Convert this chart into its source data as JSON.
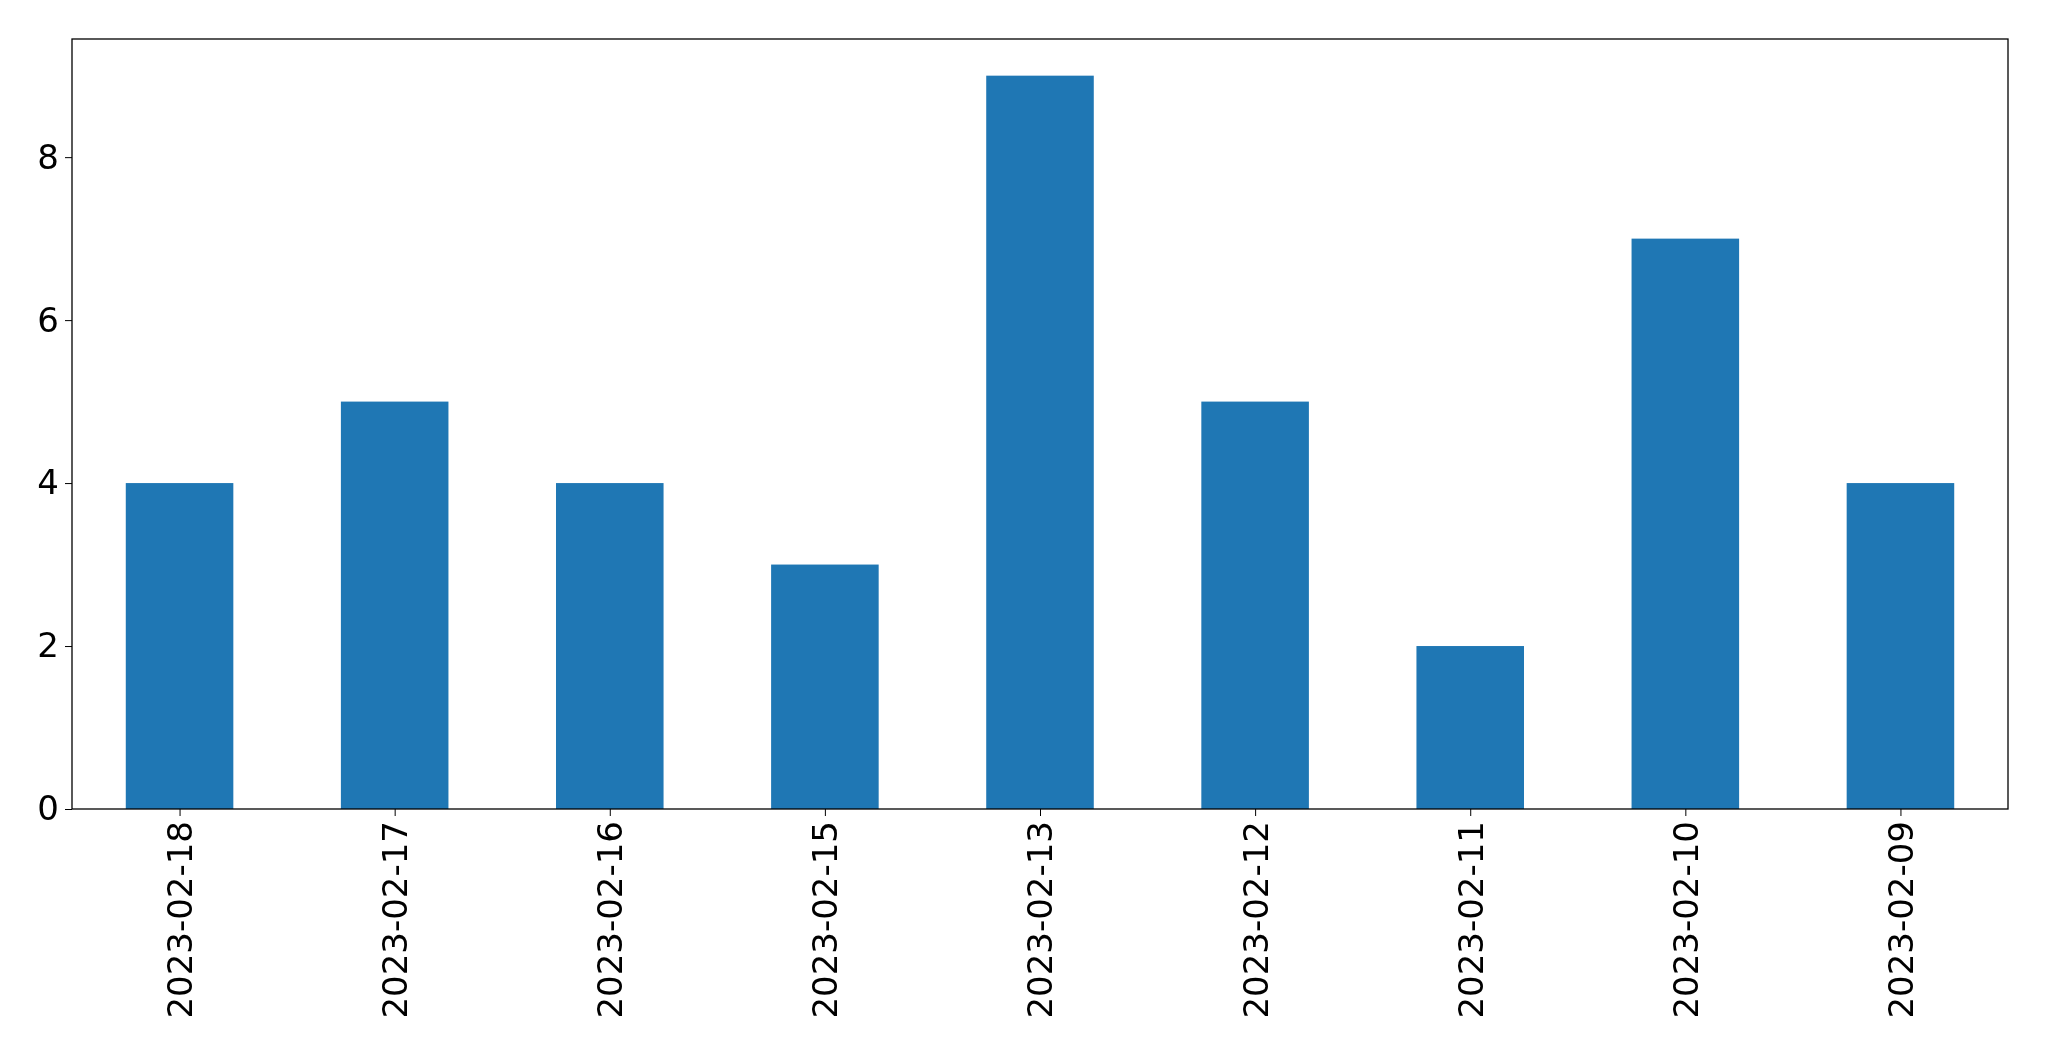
{
  "chart_data": {
    "type": "bar",
    "categories": [
      "2023-02-18",
      "2023-02-17",
      "2023-02-16",
      "2023-02-15",
      "2023-02-13",
      "2023-02-12",
      "2023-02-11",
      "2023-02-10",
      "2023-02-09"
    ],
    "values": [
      4,
      5,
      4,
      3,
      9,
      5,
      2,
      7,
      4
    ],
    "color": "#1f77b4",
    "ylim": [
      0,
      9.45
    ],
    "yticks": [
      0,
      2,
      4,
      6,
      8
    ],
    "grid": false
  }
}
